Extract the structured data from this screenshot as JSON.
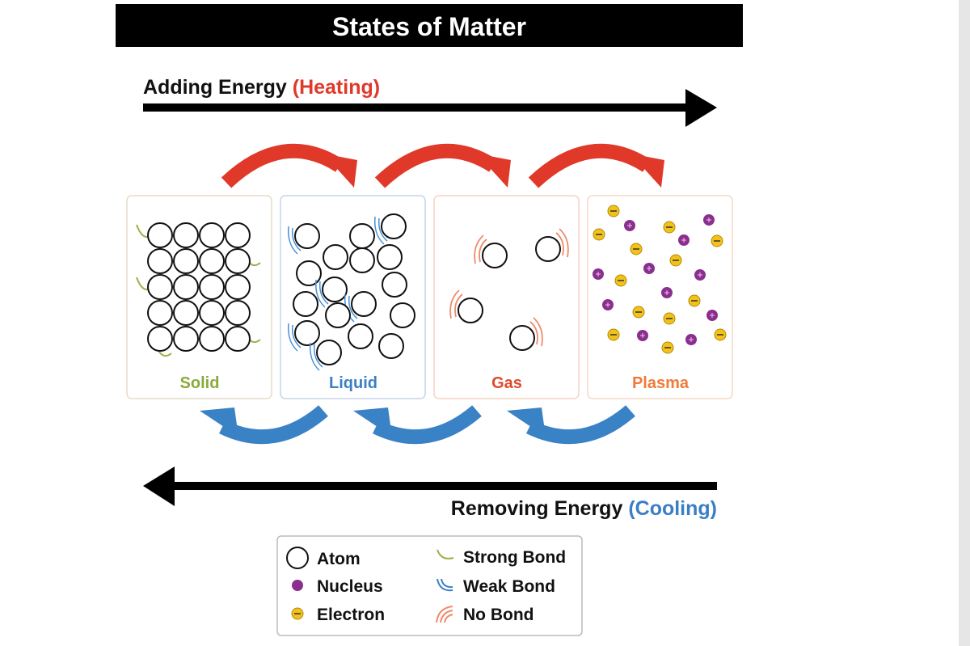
{
  "title": "States of Matter",
  "heating": {
    "label": "Adding Energy",
    "note": "(Heating)"
  },
  "states": [
    "Solid",
    "Liquid",
    "Gas",
    "Plasma"
  ],
  "cooling": {
    "label": "Removing Energy",
    "note": "(Cooling)"
  },
  "legend": [
    {
      "label": "Atom"
    },
    {
      "label": "Nucleus"
    },
    {
      "label": "Electron"
    },
    {
      "label": "Strong Bond"
    },
    {
      "label": "Weak Bond"
    },
    {
      "label": "No Bond"
    }
  ]
}
